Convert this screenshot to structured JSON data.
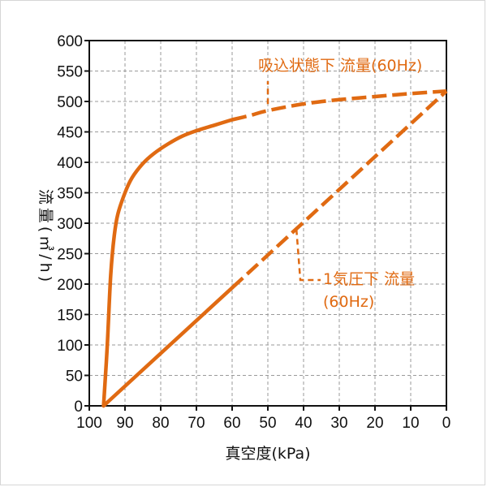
{
  "chart_data": {
    "type": "line",
    "xlabel": "真空度(kPa)",
    "ylabel": "流量(㎥/h)",
    "xlim": [
      100,
      0
    ],
    "ylim": [
      0,
      600
    ],
    "x_ticks": [
      "100",
      "90",
      "80",
      "70",
      "60",
      "50",
      "40",
      "30",
      "20",
      "10",
      "0"
    ],
    "y_ticks": [
      "0",
      "50",
      "100",
      "150",
      "200",
      "250",
      "300",
      "350",
      "400",
      "450",
      "500",
      "550",
      "600"
    ],
    "grid": true,
    "series": [
      {
        "name": "吸込状態下 流量(60Hz)",
        "style": "solid-then-dashed",
        "x": [
          96,
          95,
          94,
          93,
          92,
          90,
          88,
          85,
          82,
          78,
          74,
          70,
          65,
          60,
          55,
          50,
          40,
          30,
          20,
          10,
          0
        ],
        "y": [
          0,
          95,
          215,
          280,
          315,
          350,
          375,
          398,
          414,
          430,
          443,
          452,
          461,
          470,
          477,
          485,
          496,
          503,
          508,
          513,
          517
        ]
      },
      {
        "name": "1気圧下 流量(60Hz)",
        "style": "solid-then-dashed",
        "x": [
          96,
          0
        ],
        "y": [
          0,
          517
        ]
      }
    ],
    "annotations": [
      {
        "lines": [
          "吸込状態下 流量(60Hz)"
        ],
        "target": [
          50,
          485
        ]
      },
      {
        "lines": [
          "1気圧下 流量",
          "(60Hz)"
        ],
        "target": [
          42,
          290
        ]
      }
    ],
    "line_color": "#e06a12"
  }
}
